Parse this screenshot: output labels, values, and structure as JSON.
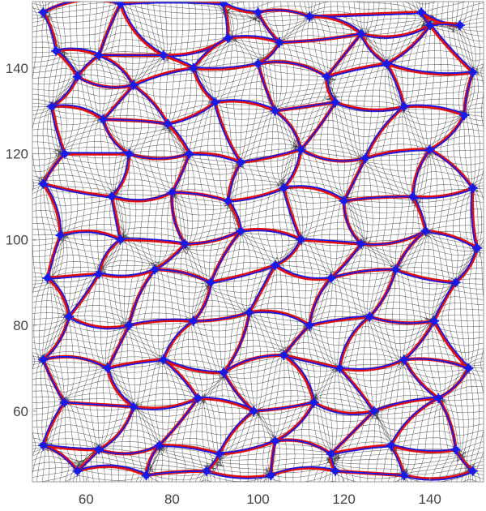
{
  "chart_data": {
    "type": "diagram",
    "description_visible": "",
    "x_ticks": [
      60,
      80,
      100,
      120,
      140
    ],
    "y_ticks": [
      60,
      80,
      100,
      120,
      140
    ],
    "xlim": [
      47.5,
      152.5
    ],
    "ylim": [
      43.5,
      155.5
    ],
    "grid": false,
    "colors": {
      "mesh": "#333333",
      "boundary_outer": "#e01010",
      "boundary_inner": "#1a1ae6",
      "junction": "#1a1ae6",
      "frame": "#999999",
      "background": "#ffffff"
    },
    "junctions": [
      [
        50,
        153
      ],
      [
        68,
        155
      ],
      [
        92,
        155
      ],
      [
        100,
        153
      ],
      [
        112,
        152
      ],
      [
        138,
        153
      ],
      [
        147,
        150
      ],
      [
        53,
        144
      ],
      [
        63,
        143
      ],
      [
        78,
        143
      ],
      [
        93,
        147
      ],
      [
        105,
        146
      ],
      [
        124,
        148
      ],
      [
        140,
        150
      ],
      [
        58,
        138
      ],
      [
        71,
        136
      ],
      [
        85,
        140
      ],
      [
        100,
        141
      ],
      [
        116,
        138
      ],
      [
        130,
        141
      ],
      [
        150,
        139
      ],
      [
        52,
        131
      ],
      [
        64,
        128
      ],
      [
        79,
        127
      ],
      [
        90,
        132
      ],
      [
        104,
        130
      ],
      [
        118,
        132
      ],
      [
        134,
        131
      ],
      [
        148,
        129
      ],
      [
        55,
        120
      ],
      [
        70,
        120
      ],
      [
        84,
        120
      ],
      [
        96,
        118
      ],
      [
        110,
        121
      ],
      [
        125,
        119
      ],
      [
        140,
        121
      ],
      [
        50,
        113
      ],
      [
        66,
        110
      ],
      [
        80,
        111
      ],
      [
        93,
        109
      ],
      [
        106,
        112
      ],
      [
        120,
        109
      ],
      [
        136,
        110
      ],
      [
        150,
        112
      ],
      [
        54,
        101
      ],
      [
        68,
        100
      ],
      [
        83,
        99
      ],
      [
        96,
        102
      ],
      [
        110,
        100
      ],
      [
        124,
        99
      ],
      [
        139,
        102
      ],
      [
        151,
        98
      ],
      [
        51,
        91
      ],
      [
        63,
        92
      ],
      [
        76,
        93
      ],
      [
        89,
        90
      ],
      [
        104,
        94
      ],
      [
        117,
        91
      ],
      [
        132,
        93
      ],
      [
        146,
        90
      ],
      [
        56,
        82
      ],
      [
        70,
        80
      ],
      [
        85,
        81
      ],
      [
        98,
        83
      ],
      [
        112,
        80
      ],
      [
        126,
        82
      ],
      [
        141,
        81
      ],
      [
        50,
        72
      ],
      [
        65,
        70
      ],
      [
        78,
        72
      ],
      [
        92,
        69
      ],
      [
        106,
        73
      ],
      [
        119,
        70
      ],
      [
        134,
        72
      ],
      [
        149,
        70
      ],
      [
        55,
        62
      ],
      [
        71,
        61
      ],
      [
        86,
        63
      ],
      [
        99,
        60
      ],
      [
        113,
        62
      ],
      [
        127,
        60
      ],
      [
        142,
        63
      ],
      [
        50,
        52
      ],
      [
        63,
        51
      ],
      [
        77,
        52
      ],
      [
        91,
        50
      ],
      [
        104,
        53
      ],
      [
        117,
        50
      ],
      [
        131,
        52
      ],
      [
        146,
        51
      ],
      [
        58,
        46
      ],
      [
        74,
        45
      ],
      [
        88,
        46
      ],
      [
        103,
        45
      ],
      [
        118,
        46
      ],
      [
        134,
        45
      ],
      [
        150,
        46
      ]
    ],
    "edges": [
      [
        0,
        1
      ],
      [
        1,
        2
      ],
      [
        2,
        3
      ],
      [
        3,
        4
      ],
      [
        4,
        5
      ],
      [
        5,
        6
      ],
      [
        0,
        7
      ],
      [
        1,
        8
      ],
      [
        1,
        9
      ],
      [
        2,
        10
      ],
      [
        3,
        11
      ],
      [
        4,
        12
      ],
      [
        5,
        13
      ],
      [
        6,
        13
      ],
      [
        7,
        8
      ],
      [
        8,
        9
      ],
      [
        9,
        10
      ],
      [
        10,
        11
      ],
      [
        11,
        12
      ],
      [
        12,
        13
      ],
      [
        7,
        14
      ],
      [
        8,
        14
      ],
      [
        8,
        15
      ],
      [
        9,
        16
      ],
      [
        10,
        16
      ],
      [
        11,
        17
      ],
      [
        12,
        18
      ],
      [
        12,
        19
      ],
      [
        13,
        19
      ],
      [
        13,
        20
      ],
      [
        14,
        15
      ],
      [
        15,
        16
      ],
      [
        16,
        17
      ],
      [
        17,
        18
      ],
      [
        18,
        19
      ],
      [
        19,
        20
      ],
      [
        14,
        21
      ],
      [
        15,
        22
      ],
      [
        16,
        24
      ],
      [
        15,
        23
      ],
      [
        17,
        25
      ],
      [
        18,
        26
      ],
      [
        19,
        27
      ],
      [
        20,
        28
      ],
      [
        21,
        22
      ],
      [
        22,
        23
      ],
      [
        23,
        24
      ],
      [
        24,
        25
      ],
      [
        25,
        26
      ],
      [
        26,
        27
      ],
      [
        27,
        28
      ],
      [
        21,
        29
      ],
      [
        22,
        30
      ],
      [
        23,
        31
      ],
      [
        24,
        32
      ],
      [
        25,
        33
      ],
      [
        26,
        33
      ],
      [
        27,
        34
      ],
      [
        28,
        35
      ],
      [
        29,
        30
      ],
      [
        30,
        31
      ],
      [
        31,
        32
      ],
      [
        32,
        33
      ],
      [
        33,
        34
      ],
      [
        34,
        35
      ],
      [
        29,
        36
      ],
      [
        30,
        37
      ],
      [
        31,
        38
      ],
      [
        32,
        39
      ],
      [
        33,
        40
      ],
      [
        34,
        41
      ],
      [
        35,
        42
      ],
      [
        35,
        43
      ],
      [
        36,
        37
      ],
      [
        37,
        38
      ],
      [
        38,
        39
      ],
      [
        39,
        40
      ],
      [
        40,
        41
      ],
      [
        41,
        42
      ],
      [
        42,
        43
      ],
      [
        36,
        44
      ],
      [
        37,
        45
      ],
      [
        38,
        46
      ],
      [
        39,
        47
      ],
      [
        40,
        48
      ],
      [
        41,
        49
      ],
      [
        42,
        50
      ],
      [
        43,
        51
      ],
      [
        44,
        45
      ],
      [
        45,
        46
      ],
      [
        46,
        47
      ],
      [
        47,
        48
      ],
      [
        48,
        49
      ],
      [
        49,
        50
      ],
      [
        50,
        51
      ],
      [
        44,
        52
      ],
      [
        45,
        53
      ],
      [
        46,
        54
      ],
      [
        47,
        55
      ],
      [
        48,
        56
      ],
      [
        49,
        57
      ],
      [
        50,
        58
      ],
      [
        51,
        59
      ],
      [
        52,
        53
      ],
      [
        53,
        54
      ],
      [
        54,
        55
      ],
      [
        55,
        56
      ],
      [
        56,
        57
      ],
      [
        57,
        58
      ],
      [
        58,
        59
      ],
      [
        52,
        60
      ],
      [
        53,
        60
      ],
      [
        54,
        61
      ],
      [
        55,
        62
      ],
      [
        56,
        63
      ],
      [
        57,
        64
      ],
      [
        58,
        65
      ],
      [
        59,
        66
      ],
      [
        60,
        61
      ],
      [
        61,
        62
      ],
      [
        62,
        63
      ],
      [
        63,
        64
      ],
      [
        64,
        65
      ],
      [
        65,
        66
      ],
      [
        60,
        67
      ],
      [
        61,
        68
      ],
      [
        62,
        69
      ],
      [
        63,
        70
      ],
      [
        64,
        71
      ],
      [
        65,
        72
      ],
      [
        66,
        73
      ],
      [
        66,
        74
      ],
      [
        67,
        68
      ],
      [
        68,
        69
      ],
      [
        69,
        70
      ],
      [
        70,
        71
      ],
      [
        71,
        72
      ],
      [
        72,
        73
      ],
      [
        73,
        74
      ],
      [
        67,
        75
      ],
      [
        68,
        76
      ],
      [
        69,
        77
      ],
      [
        70,
        78
      ],
      [
        71,
        79
      ],
      [
        72,
        80
      ],
      [
        73,
        81
      ],
      [
        74,
        81
      ],
      [
        75,
        76
      ],
      [
        76,
        77
      ],
      [
        77,
        78
      ],
      [
        78,
        79
      ],
      [
        79,
        80
      ],
      [
        80,
        81
      ],
      [
        75,
        82
      ],
      [
        76,
        83
      ],
      [
        77,
        84
      ],
      [
        78,
        85
      ],
      [
        79,
        86
      ],
      [
        80,
        87
      ],
      [
        81,
        88
      ],
      [
        81,
        89
      ],
      [
        82,
        83
      ],
      [
        83,
        84
      ],
      [
        84,
        85
      ],
      [
        85,
        86
      ],
      [
        86,
        87
      ],
      [
        87,
        88
      ],
      [
        88,
        89
      ],
      [
        82,
        90
      ],
      [
        83,
        90
      ],
      [
        84,
        91
      ],
      [
        85,
        92
      ],
      [
        86,
        93
      ],
      [
        87,
        94
      ],
      [
        88,
        95
      ],
      [
        89,
        96
      ],
      [
        90,
        91
      ],
      [
        91,
        92
      ],
      [
        92,
        93
      ],
      [
        93,
        94
      ],
      [
        94,
        95
      ],
      [
        95,
        96
      ]
    ]
  }
}
